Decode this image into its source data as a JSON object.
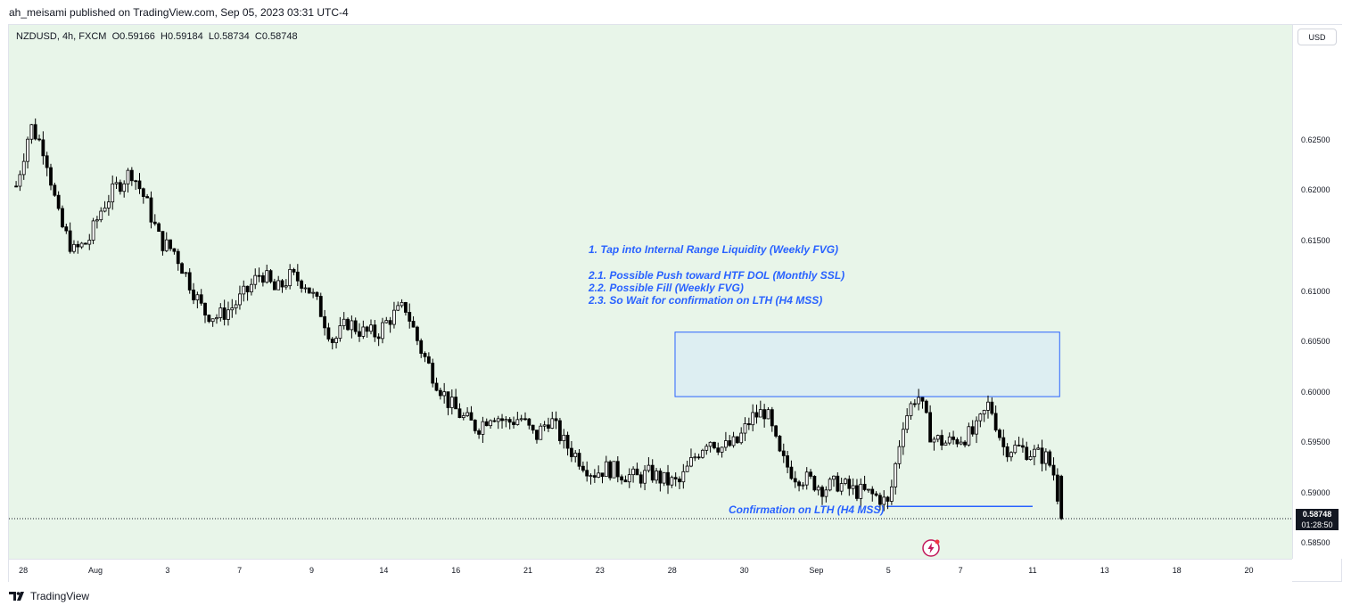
{
  "header": {
    "publish_text": "ah_meisami published on TradingView.com, Sep 05, 2023 03:31 UTC-4"
  },
  "legend": {
    "symbol": "NZDUSD, 4h, FXCM",
    "open": "O0.59166",
    "high": "H0.59184",
    "low": "L0.58734",
    "close": "C0.58748"
  },
  "currency_button": "USD",
  "last_price": {
    "price": "0.58748",
    "countdown": "01:28:50"
  },
  "annotations": {
    "line1": "1. Tap into Internal Range Liquidity (Weekly FVG)",
    "line2": "2.1. Possible Push toward HTF DOL (Monthly SSL)",
    "line3": "2.2. Possible Fill (Weekly FVG)",
    "line4": "2.3. So Wait for confirmation on LTH (H4 MSS)",
    "confirmation": "Confirmation on LTH (H4 MSS)"
  },
  "footer": {
    "brand": "TradingView"
  },
  "colors": {
    "plot_background": "#e8f5e9",
    "up_candle_fill": "#ffffff",
    "down_candle_fill": "#000000",
    "candle_outline": "#000000",
    "annotation": "#2962ff",
    "fvg_box_fill": "#ddeef2",
    "fvg_box_border": "#2962ff"
  },
  "chart_data": {
    "type": "candlestick",
    "symbol": "NZDUSD",
    "timeframe": "4h",
    "ylim": [
      0.5835,
      0.6365
    ],
    "y_ticks": [
      "0.62500",
      "0.62000",
      "0.61500",
      "0.61000",
      "0.60500",
      "0.60000",
      "0.59500",
      "0.59000",
      "0.58500"
    ],
    "x_ticks": [
      "28",
      "Aug",
      "3",
      "7",
      "9",
      "14",
      "16",
      "21",
      "23",
      "28",
      "30",
      "Sep",
      "5",
      "7",
      "11",
      "13",
      "18",
      "20"
    ],
    "x_tick_times": [
      2,
      22,
      42,
      62,
      82,
      102,
      122,
      142,
      162,
      182,
      202,
      222,
      242,
      262,
      282,
      302,
      322,
      342
    ],
    "x_range": [
      -2,
      354
    ],
    "candles_start": 0,
    "candles_step": 1.07,
    "fvg_zone": {
      "top": 0.606,
      "bottom": 0.5996,
      "start": 182.8,
      "end": 289.5
    },
    "confirmation_level": {
      "price": 0.5887,
      "start": 241.5,
      "end": 282
    },
    "current_price": 0.58748,
    "anchors": [
      [
        0,
        0.6205
      ],
      [
        4,
        0.6265
      ],
      [
        8,
        0.624
      ],
      [
        12,
        0.617
      ],
      [
        16,
        0.614
      ],
      [
        20,
        0.615
      ],
      [
        24,
        0.6185
      ],
      [
        28,
        0.6205
      ],
      [
        32,
        0.622
      ],
      [
        36,
        0.619
      ],
      [
        40,
        0.615
      ],
      [
        44,
        0.614
      ],
      [
        48,
        0.611
      ],
      [
        52,
        0.608
      ],
      [
        56,
        0.6075
      ],
      [
        60,
        0.6085
      ],
      [
        64,
        0.61
      ],
      [
        68,
        0.612
      ],
      [
        72,
        0.61
      ],
      [
        76,
        0.6115
      ],
      [
        80,
        0.611
      ],
      [
        84,
        0.6085
      ],
      [
        88,
        0.605
      ],
      [
        92,
        0.607
      ],
      [
        96,
        0.606
      ],
      [
        100,
        0.6058
      ],
      [
        104,
        0.6075
      ],
      [
        108,
        0.6085
      ],
      [
        112,
        0.6045
      ],
      [
        116,
        0.6015
      ],
      [
        120,
        0.599
      ],
      [
        124,
        0.5975
      ],
      [
        128,
        0.5965
      ],
      [
        132,
        0.598
      ],
      [
        136,
        0.597
      ],
      [
        140,
        0.5975
      ],
      [
        144,
        0.5955
      ],
      [
        148,
        0.5975
      ],
      [
        152,
        0.595
      ],
      [
        156,
        0.5935
      ],
      [
        160,
        0.592
      ],
      [
        164,
        0.5925
      ],
      [
        168,
        0.592
      ],
      [
        172,
        0.5915
      ],
      [
        176,
        0.592
      ],
      [
        180,
        0.5912
      ],
      [
        184,
        0.591
      ],
      [
        188,
        0.5935
      ],
      [
        192,
        0.5955
      ],
      [
        196,
        0.5945
      ],
      [
        200,
        0.595
      ],
      [
        204,
        0.5975
      ],
      [
        208,
        0.5982
      ],
      [
        212,
        0.5935
      ],
      [
        216,
        0.5918
      ],
      [
        220,
        0.5913
      ],
      [
        224,
        0.5905
      ],
      [
        228,
        0.591
      ],
      [
        232,
        0.5903
      ],
      [
        236,
        0.59
      ],
      [
        240,
        0.5895
      ],
      [
        242,
        0.5888
      ],
      [
        246,
        0.597
      ],
      [
        250,
        0.6
      ],
      [
        254,
        0.5955
      ],
      [
        258,
        0.595
      ],
      [
        262,
        0.5955
      ],
      [
        266,
        0.596
      ],
      [
        270,
        0.599
      ],
      [
        274,
        0.5945
      ],
      [
        278,
        0.5945
      ],
      [
        282,
        0.594
      ],
      [
        286,
        0.5935
      ],
      [
        288,
        0.5918
      ],
      [
        290,
        0.5875
      ]
    ]
  }
}
